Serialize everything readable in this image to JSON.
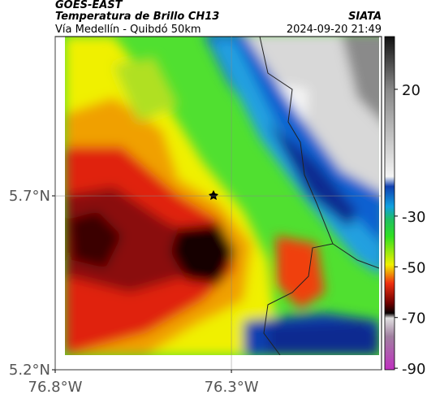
{
  "header": {
    "satellite": "GOES-EAST",
    "title": "Temperatura de Brillo CH13",
    "subtitle": "Vía Medellín - Quibdó 50km",
    "source": "SIATA",
    "datetime": "2024-09-20 21:49"
  },
  "map": {
    "xlim": [
      -76.8,
      -75.874
    ],
    "ylim": [
      5.2,
      6.158
    ],
    "xticks": [
      {
        "value": -76.8,
        "label": "76.8°W"
      },
      {
        "value": -76.3,
        "label": "76.3°W"
      }
    ],
    "yticks": [
      {
        "value": 5.7,
        "label": "5.7°N"
      },
      {
        "value": 5.2,
        "label": "5.2°N"
      }
    ],
    "grid": true,
    "colorbar": {
      "lim": [
        -90.6,
        40.8
      ],
      "ticks": [
        20,
        -30,
        -50,
        -70,
        -90
      ]
    }
  }
}
